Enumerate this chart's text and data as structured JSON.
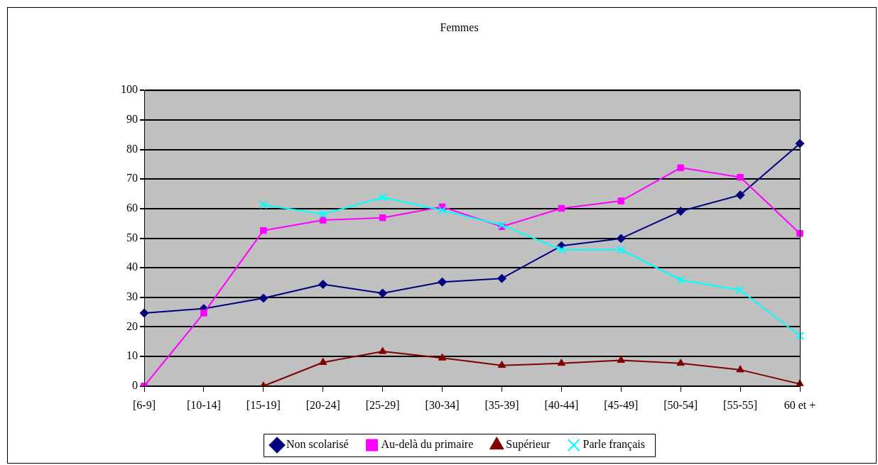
{
  "chart_data": {
    "type": "line",
    "title": "Femmes",
    "categories": [
      "[6-9]",
      "[10-14]",
      "[15-19]",
      "[20-24]",
      "[25-29]",
      "[30-34]",
      "[35-39]",
      "[40-44]",
      "[45-49]",
      "[50-54]",
      "[55-55]",
      "60 et +"
    ],
    "series": [
      {
        "name": "Non scolarisé",
        "color": "#000080",
        "marker": "diamond",
        "values": [
          24.7,
          26.2,
          29.7,
          34.4,
          31.4,
          35.2,
          36.4,
          47.4,
          49.9,
          59.1,
          64.6,
          82.0
        ]
      },
      {
        "name": "Au-delà du primaire",
        "color": "#ff00ff",
        "marker": "square",
        "values": [
          0,
          24.7,
          52.6,
          56.1,
          56.9,
          60.6,
          53.9,
          60.1,
          62.6,
          73.8,
          70.6,
          51.6
        ]
      },
      {
        "name": "Supérieur",
        "color": "#800000",
        "marker": "triangle",
        "values": [
          null,
          null,
          0,
          8.0,
          11.7,
          9.5,
          7.0,
          7.7,
          8.7,
          7.7,
          5.5,
          0.7
        ]
      },
      {
        "name": "Parle français",
        "color": "#00ffff",
        "marker": "cross",
        "values": [
          null,
          null,
          61.3,
          58.1,
          63.8,
          59.4,
          54.4,
          46.1,
          46.1,
          35.9,
          32.4,
          17.0
        ]
      }
    ],
    "ylim": [
      0,
      100
    ],
    "yticks": [
      0,
      10,
      20,
      30,
      40,
      50,
      60,
      70,
      80,
      90,
      100
    ],
    "grid": "y",
    "legend": "bottom",
    "line_style": "solid"
  }
}
